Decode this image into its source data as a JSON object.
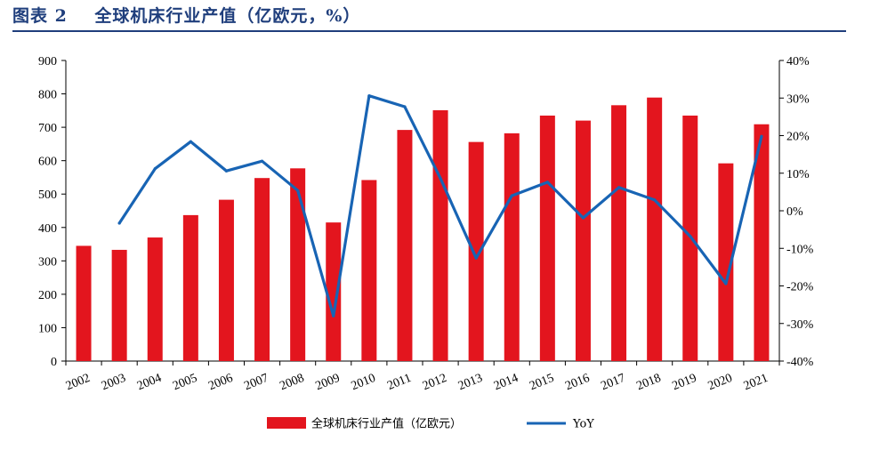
{
  "header": {
    "figure_label": "图表 2",
    "title": "全球机床行业产值（亿欧元，%）"
  },
  "chart_data": {
    "type": "bar",
    "categories": [
      "2002",
      "2003",
      "2004",
      "2005",
      "2006",
      "2007",
      "2008",
      "2009",
      "2010",
      "2011",
      "2012",
      "2013",
      "2014",
      "2015",
      "2016",
      "2017",
      "2018",
      "2019",
      "2020",
      "2021"
    ],
    "series": [
      {
        "name": "全球机床行业产值（亿欧元）",
        "type": "bar",
        "axis": "left",
        "color": "#e3151e",
        "values": [
          345,
          333,
          370,
          437,
          483,
          548,
          577,
          415,
          542,
          692,
          751,
          656,
          682,
          735,
          720,
          766,
          789,
          735,
          592,
          709
        ]
      },
      {
        "name": "YoY",
        "type": "line",
        "axis": "right",
        "color": "#1864b4",
        "values": [
          null,
          -3.3,
          11.2,
          18.4,
          10.6,
          13.2,
          5.4,
          -28.0,
          30.6,
          27.7,
          8.6,
          -12.6,
          4.0,
          7.6,
          -1.9,
          6.2,
          2.9,
          -6.8,
          -19.4,
          19.8
        ]
      }
    ],
    "y_left": {
      "min": 0,
      "max": 900,
      "ticks": [
        0,
        100,
        200,
        300,
        400,
        500,
        600,
        700,
        800,
        900
      ]
    },
    "y_right": {
      "min": -40,
      "max": 40,
      "ticks": [
        "-40%",
        "-30%",
        "-20%",
        "-10%",
        "0%",
        "10%",
        "20%",
        "30%",
        "40%"
      ]
    },
    "legend": [
      "全球机床行业产值（亿欧元）",
      "YoY"
    ],
    "legend_position": "bottom",
    "grid": false
  }
}
